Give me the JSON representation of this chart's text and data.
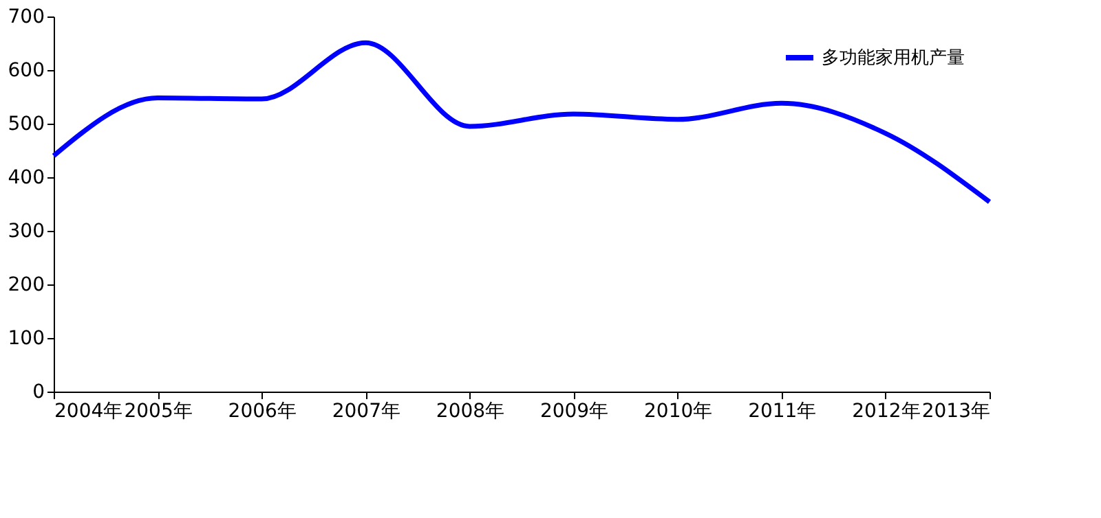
{
  "chart_data": {
    "type": "line",
    "categories": [
      "2004年",
      "2005年",
      "2006年",
      "2007年",
      "2008年",
      "2009年",
      "2010年",
      "2011年",
      "2012年",
      "2013年"
    ],
    "series": [
      {
        "name": "多功能家用机产量",
        "color": "#0000ff",
        "values": [
          440,
          548,
          546,
          651,
          495,
          518,
          508,
          538,
          482,
          354
        ]
      }
    ],
    "ylim": [
      0,
      700
    ],
    "yticks": [
      0,
      100,
      200,
      300,
      400,
      500,
      600,
      700
    ],
    "grid": false,
    "legend": "top right",
    "marker": "none",
    "line_style": "solid"
  }
}
